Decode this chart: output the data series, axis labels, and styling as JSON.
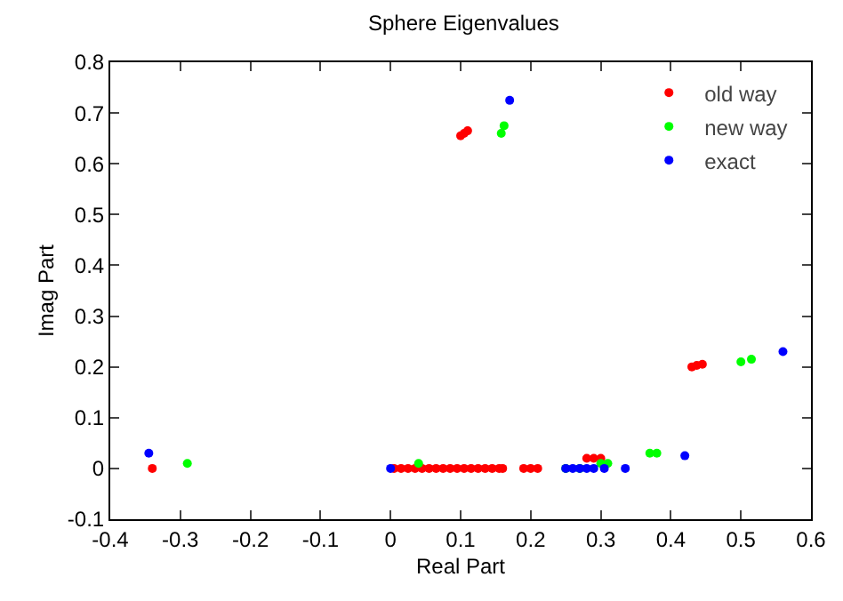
{
  "chart_data": {
    "type": "scatter",
    "title": "Sphere Eigenvalues",
    "xlabel": "Real Part",
    "ylabel": "Imag Part",
    "xlim": [
      -0.4,
      0.6
    ],
    "ylim": [
      -0.1,
      0.8
    ],
    "xticks": [
      -0.4,
      -0.3,
      -0.2,
      -0.1,
      0,
      0.1,
      0.2,
      0.3,
      0.4,
      0.5,
      0.6
    ],
    "yticks": [
      -0.1,
      0,
      0.1,
      0.2,
      0.3,
      0.4,
      0.5,
      0.6,
      0.7,
      0.8
    ],
    "grid": false,
    "legend": "top right",
    "marker": "circle",
    "series": [
      {
        "name": "old way",
        "color": "#ff0000",
        "x": [
          -0.34,
          0.005,
          0.015,
          0.025,
          0.035,
          0.045,
          0.055,
          0.065,
          0.075,
          0.085,
          0.095,
          0.105,
          0.115,
          0.125,
          0.135,
          0.145,
          0.155,
          0.16,
          0.19,
          0.2,
          0.21,
          0.28,
          0.29,
          0.3,
          0.43,
          0.437,
          0.445,
          0.1,
          0.105,
          0.11
        ],
        "values": [
          0,
          0,
          0,
          0,
          0,
          0,
          0,
          0,
          0,
          0,
          0,
          0,
          0,
          0,
          0,
          0,
          0,
          0,
          0,
          0,
          0,
          0.02,
          0.02,
          0.02,
          0.2,
          0.203,
          0.205,
          0.655,
          0.66,
          0.665
        ]
      },
      {
        "name": "new way",
        "color": "#00ff00",
        "x": [
          -0.29,
          0.04,
          0.25,
          0.27,
          0.3,
          0.31,
          0.37,
          0.38,
          0.5,
          0.515,
          0.158,
          0.162
        ],
        "values": [
          0.01,
          0.01,
          0,
          0,
          0.01,
          0.01,
          0.03,
          0.03,
          0.21,
          0.215,
          0.66,
          0.675
        ]
      },
      {
        "name": "exact",
        "color": "#0000ff",
        "x": [
          -0.345,
          0,
          0.25,
          0.26,
          0.27,
          0.28,
          0.29,
          0.305,
          0.335,
          0.42,
          0.56,
          0.17
        ],
        "values": [
          0.03,
          0,
          0,
          0,
          0,
          0,
          0,
          0,
          0,
          0.025,
          0.23,
          0.725
        ]
      }
    ]
  }
}
